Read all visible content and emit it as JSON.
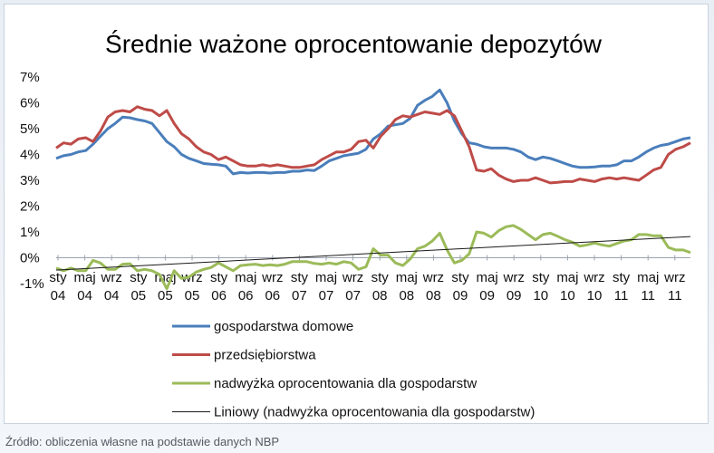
{
  "source": "Źródło: obliczenia własne na podstawie danych NBP",
  "chart_data": {
    "type": "line",
    "title": "Średnie ważone oprocentowanie depozytów",
    "yticks": [
      "7%",
      "6%",
      "5%",
      "4%",
      "3%",
      "2%",
      "1%",
      "0%",
      "-1%"
    ],
    "ylim": [
      -1,
      7
    ],
    "x_tick_labels_month": [
      "sty",
      "maj",
      "wrz",
      "sty",
      "maj",
      "wrz",
      "sty",
      "maj",
      "wrz",
      "sty",
      "maj",
      "wrz",
      "sty",
      "maj",
      "wrz",
      "sty",
      "maj",
      "wrz",
      "sty",
      "maj",
      "wrz",
      "sty",
      "maj",
      "wrz"
    ],
    "x_tick_labels_year": [
      "04",
      "04",
      "04",
      "05",
      "05",
      "05",
      "06",
      "06",
      "06",
      "07",
      "07",
      "07",
      "08",
      "08",
      "08",
      "09",
      "09",
      "09",
      "10",
      "10",
      "10",
      "11",
      "11",
      "11"
    ],
    "x_start": "2004-01",
    "legend_position": "bottom",
    "series": [
      {
        "name": "gospodarstwa domowe",
        "color": "#4a7ebb",
        "values": [
          3.85,
          3.95,
          4.0,
          4.1,
          4.15,
          4.4,
          4.7,
          5.0,
          5.2,
          5.45,
          5.42,
          5.35,
          5.3,
          5.2,
          4.85,
          4.5,
          4.3,
          4.0,
          3.85,
          3.75,
          3.65,
          3.62,
          3.6,
          3.55,
          3.25,
          3.3,
          3.28,
          3.3,
          3.3,
          3.28,
          3.3,
          3.3,
          3.35,
          3.35,
          3.4,
          3.38,
          3.55,
          3.75,
          3.85,
          3.95,
          4.0,
          4.05,
          4.2,
          4.6,
          4.8,
          5.1,
          5.15,
          5.2,
          5.4,
          5.9,
          6.1,
          6.25,
          6.5,
          6.0,
          5.3,
          4.8,
          4.45,
          4.4,
          4.3,
          4.25,
          4.25,
          4.25,
          4.2,
          4.1,
          3.9,
          3.8,
          3.9,
          3.85,
          3.75,
          3.65,
          3.55,
          3.5,
          3.5,
          3.52,
          3.55,
          3.55,
          3.6,
          3.75,
          3.75,
          3.9,
          4.1,
          4.25,
          4.35,
          4.4,
          4.5,
          4.6,
          4.65
        ]
      },
      {
        "name": "przedsiębiorstwa",
        "color": "#be4b48",
        "values": [
          4.25,
          4.45,
          4.4,
          4.6,
          4.65,
          4.5,
          4.9,
          5.45,
          5.65,
          5.7,
          5.65,
          5.85,
          5.75,
          5.7,
          5.5,
          5.7,
          5.2,
          4.8,
          4.6,
          4.3,
          4.1,
          4.0,
          3.8,
          3.9,
          3.75,
          3.6,
          3.55,
          3.55,
          3.6,
          3.55,
          3.6,
          3.55,
          3.5,
          3.5,
          3.55,
          3.6,
          3.8,
          3.95,
          4.1,
          4.1,
          4.2,
          4.5,
          4.55,
          4.25,
          4.7,
          5.0,
          5.35,
          5.5,
          5.45,
          5.55,
          5.65,
          5.6,
          5.55,
          5.7,
          5.5,
          4.9,
          4.3,
          3.4,
          3.35,
          3.45,
          3.2,
          3.05,
          2.95,
          3.0,
          3.0,
          3.1,
          3.0,
          2.9,
          2.92,
          2.95,
          2.95,
          3.05,
          3.0,
          2.95,
          3.05,
          3.1,
          3.05,
          3.1,
          3.05,
          3.0,
          3.2,
          3.4,
          3.5,
          4.0,
          4.2,
          4.3,
          4.45
        ]
      },
      {
        "name": "nadwyżka oprocentowania dla gospodarstw",
        "color": "#9bbb59",
        "values": [
          -0.4,
          -0.5,
          -0.4,
          -0.5,
          -0.5,
          -0.1,
          -0.2,
          -0.45,
          -0.45,
          -0.25,
          -0.23,
          -0.5,
          -0.45,
          -0.5,
          -0.65,
          -1.2,
          -0.5,
          -0.8,
          -0.75,
          -0.55,
          -0.45,
          -0.38,
          -0.2,
          -0.35,
          -0.5,
          -0.3,
          -0.27,
          -0.25,
          -0.3,
          -0.27,
          -0.3,
          -0.25,
          -0.15,
          -0.15,
          -0.15,
          -0.22,
          -0.25,
          -0.2,
          -0.25,
          -0.15,
          -0.2,
          -0.45,
          -0.35,
          0.35,
          0.1,
          0.1,
          -0.2,
          -0.3,
          -0.05,
          0.35,
          0.45,
          0.65,
          0.95,
          0.3,
          -0.2,
          -0.1,
          0.15,
          1.0,
          0.95,
          0.8,
          1.05,
          1.2,
          1.25,
          1.1,
          0.9,
          0.7,
          0.9,
          0.95,
          0.83,
          0.7,
          0.6,
          0.45,
          0.5,
          0.57,
          0.5,
          0.45,
          0.55,
          0.65,
          0.7,
          0.9,
          0.9,
          0.85,
          0.85,
          0.4,
          0.3,
          0.3,
          0.2
        ]
      },
      {
        "name": "Liniowy (nadwyżka oprocentowania dla gospodarstw)",
        "color": "#1a1a1a",
        "trend": [
          -0.48,
          0.82
        ]
      }
    ]
  }
}
